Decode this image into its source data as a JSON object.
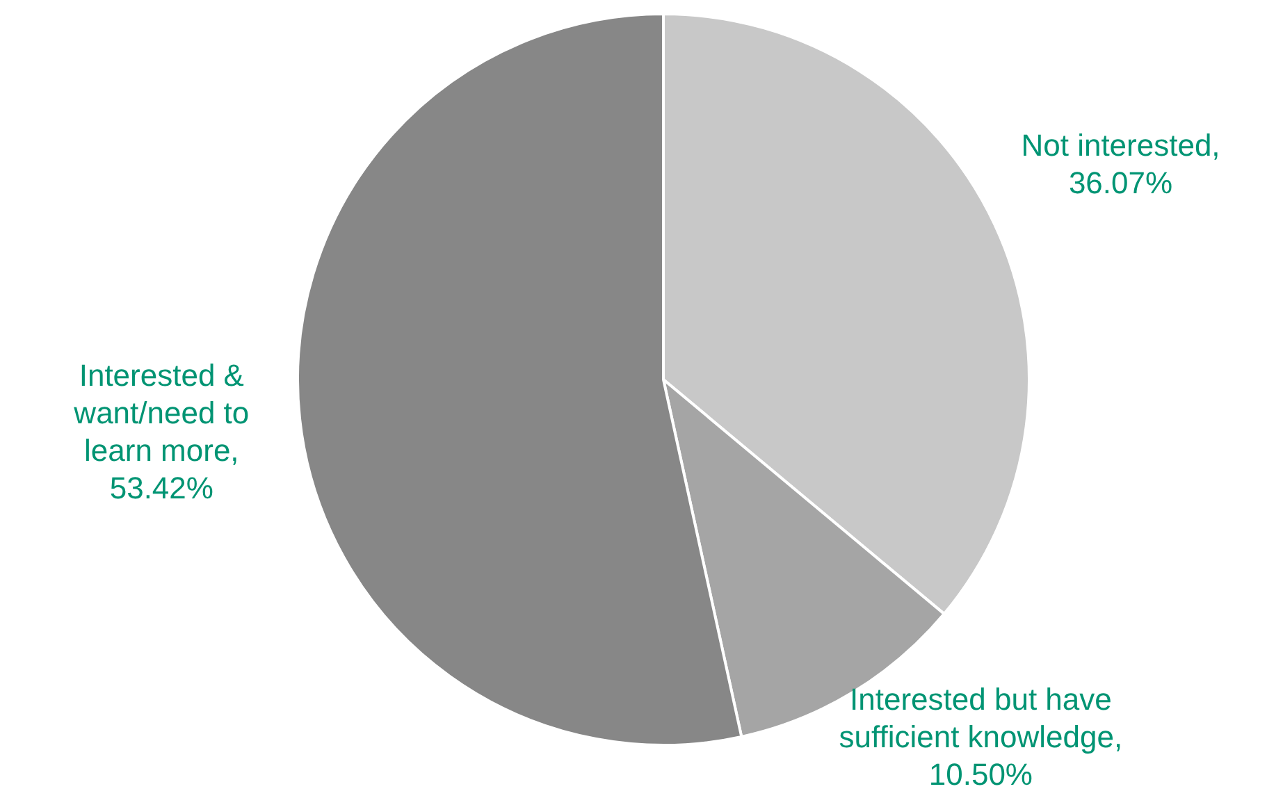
{
  "chart_data": {
    "type": "pie",
    "categories": [
      "Not interested",
      "Interested but have sufficient knowledge",
      "Interested & want/need to learn more"
    ],
    "values": [
      36.07,
      10.5,
      53.42
    ],
    "colors": [
      "#c8c8c8",
      "#a5a5a5",
      "#878787"
    ],
    "value_labels": [
      ", 36.07%",
      ", 10.50%",
      ", 53.42%"
    ],
    "legend": false
  }
}
